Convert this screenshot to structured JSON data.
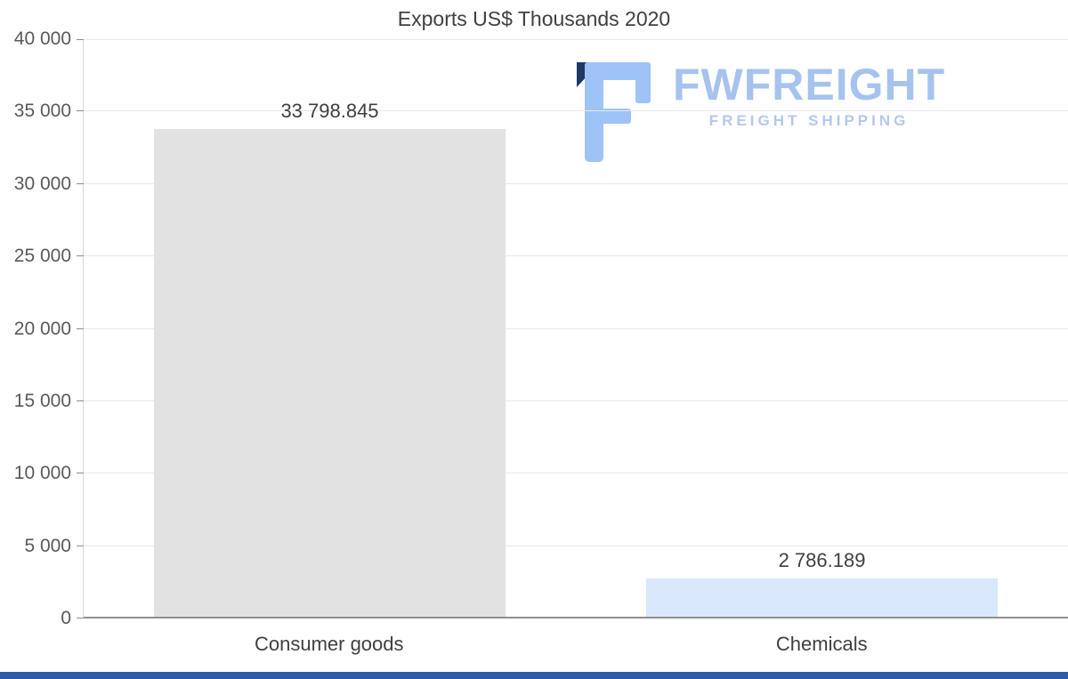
{
  "chart_data": {
    "type": "bar",
    "title": "Exports US$ Thousands 2020",
    "categories": [
      "Consumer goods",
      "Chemicals"
    ],
    "values": [
      33798.845,
      2786.189
    ],
    "value_labels": [
      "33 798.845",
      "2 786.189"
    ],
    "bar_colors": [
      "#e2e2e2",
      "#d9e8fb"
    ],
    "xlabel": "",
    "ylabel": "",
    "ylim": [
      0,
      40000
    ],
    "yticks": [
      0,
      5000,
      10000,
      15000,
      20000,
      25000,
      30000,
      35000,
      40000
    ],
    "ytick_labels": [
      "0",
      "5 000",
      "10 000",
      "15 000",
      "20 000",
      "25 000",
      "30 000",
      "35 000",
      "40 000"
    ],
    "grid": "horizontal",
    "legend": "none"
  },
  "logo": {
    "text": "FWFREIGHT",
    "subtitle": "FREIGHT SHIPPING",
    "text_color": "#a6c3ee",
    "subtitle_color": "#b3c8f0",
    "icon_color": "#9dc3f7",
    "icon_dark_color": "#1d3a66"
  },
  "footer_bar_color": "#2d5ba9"
}
